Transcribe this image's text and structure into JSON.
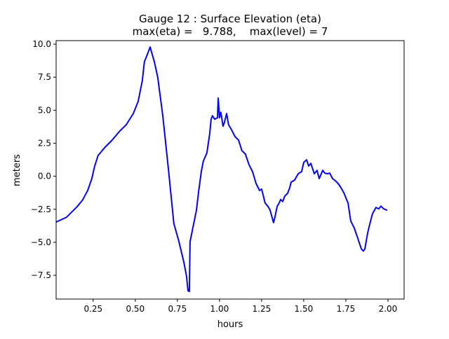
{
  "chart_data": {
    "type": "line",
    "title": "Gauge 12 : Surface Elevation (eta)",
    "subtitle": "max(eta) =   9.788,    max(level) = 7",
    "xlabel": "hours",
    "ylabel": "meters",
    "xlim": [
      0.03,
      2.096
    ],
    "ylim": [
      -9.3,
      10.27
    ],
    "xticks": [
      0.25,
      0.5,
      0.75,
      1.0,
      1.25,
      1.5,
      1.75,
      2.0
    ],
    "xtick_labels": [
      "0.25",
      "0.50",
      "0.75",
      "1.00",
      "1.25",
      "1.50",
      "1.75",
      "2.00"
    ],
    "yticks": [
      -7.5,
      -5.0,
      -2.5,
      0.0,
      2.5,
      5.0,
      7.5,
      10.0
    ],
    "ytick_labels": [
      "−7.5",
      "−5.0",
      "−2.5",
      "0.0",
      "2.5",
      "5.0",
      "7.5",
      "10.0"
    ],
    "grid": false,
    "series": [
      {
        "name": "eta",
        "color": "#0000ff",
        "x": [
          0.029,
          0.092,
          0.154,
          0.188,
          0.217,
          0.242,
          0.258,
          0.279,
          0.321,
          0.363,
          0.404,
          0.446,
          0.488,
          0.517,
          0.542,
          0.554,
          0.571,
          0.588,
          0.613,
          0.633,
          0.663,
          0.696,
          0.729,
          0.758,
          0.788,
          0.804,
          0.813,
          0.821,
          0.825,
          0.842,
          0.863,
          0.875,
          0.892,
          0.904,
          0.925,
          0.933,
          0.942,
          0.95,
          0.958,
          0.971,
          0.988,
          0.992,
          1.0,
          1.008,
          1.021,
          1.029,
          1.042,
          1.054,
          1.071,
          1.092,
          1.113,
          1.133,
          1.154,
          1.175,
          1.196,
          1.217,
          1.238,
          1.25,
          1.271,
          1.288,
          1.3,
          1.321,
          1.329,
          1.342,
          1.354,
          1.363,
          1.375,
          1.388,
          1.404,
          1.417,
          1.425,
          1.446,
          1.467,
          1.488,
          1.5,
          1.517,
          1.529,
          1.542,
          1.563,
          1.579,
          1.592,
          1.613,
          1.625,
          1.642,
          1.654,
          1.671,
          1.688,
          1.704,
          1.721,
          1.738,
          1.763,
          1.779,
          1.8,
          1.821,
          1.842,
          1.854,
          1.863,
          1.879,
          1.892,
          1.908,
          1.929,
          1.946,
          1.958,
          1.975,
          1.996
        ],
        "y": [
          -3.47,
          -3.1,
          -2.31,
          -1.78,
          -1.09,
          -0.18,
          0.72,
          1.57,
          2.21,
          2.74,
          3.37,
          3.9,
          4.75,
          5.66,
          7.25,
          8.67,
          9.21,
          9.788,
          8.67,
          7.51,
          4.6,
          0.62,
          -3.58,
          -4.9,
          -6.49,
          -7.55,
          -8.67,
          -8.72,
          -4.96,
          -3.9,
          -2.58,
          -1.25,
          0.34,
          1.14,
          1.77,
          2.46,
          3.26,
          4.32,
          4.58,
          4.32,
          4.43,
          5.92,
          4.43,
          4.85,
          3.79,
          4.06,
          4.75,
          3.9,
          3.53,
          3.0,
          2.74,
          1.94,
          1.68,
          0.88,
          0.35,
          -0.55,
          -1.08,
          -0.97,
          -2.03,
          -2.29,
          -2.56,
          -3.51,
          -3.09,
          -2.29,
          -2.03,
          -1.76,
          -1.92,
          -1.5,
          -1.29,
          -0.87,
          -0.45,
          -0.29,
          0.19,
          0.35,
          1.04,
          1.25,
          0.77,
          0.98,
          0.19,
          0.45,
          -0.18,
          0.45,
          0.24,
          0.19,
          0.24,
          -0.18,
          -0.34,
          -0.55,
          -0.87,
          -1.25,
          -2.03,
          -3.38,
          -3.91,
          -4.7,
          -5.5,
          -5.66,
          -5.5,
          -4.33,
          -3.64,
          -2.84,
          -2.37,
          -2.47,
          -2.26,
          -2.47,
          -2.58
        ]
      }
    ]
  }
}
